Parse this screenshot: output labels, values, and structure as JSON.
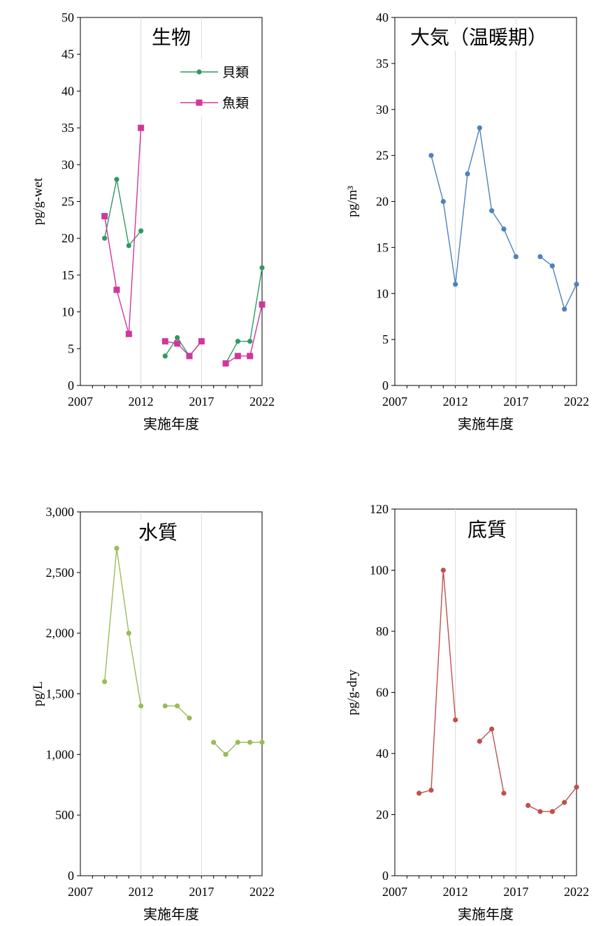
{
  "chart_data": [
    {
      "type": "line",
      "title": "生物",
      "xlabel": "実施年度",
      "ylabel": "pg/g-wet",
      "xlim": [
        2007,
        2022
      ],
      "ylim": [
        0,
        50
      ],
      "yticks": [
        0,
        5,
        10,
        15,
        20,
        25,
        30,
        35,
        40,
        45,
        50
      ],
      "ytick_labels": [
        "0",
        "5",
        "10",
        "15",
        "20",
        "25",
        "30",
        "35",
        "40",
        "45",
        "50"
      ],
      "xticks": [
        2007,
        2012,
        2017,
        2022
      ],
      "xtick_labels": [
        "2007",
        "2012",
        "2017",
        "2022"
      ],
      "legend": "top-right",
      "grid": "vertical",
      "series": [
        {
          "name": "貝類",
          "color": "#2e9a62",
          "marker": "circle",
          "segments": [
            [
              [
                2009,
                20
              ],
              [
                2010,
                28
              ],
              [
                2011,
                19
              ],
              [
                2012,
                21
              ]
            ],
            [
              [
                2014,
                4
              ],
              [
                2015,
                6.5
              ],
              [
                2016,
                4
              ],
              [
                2017,
                6
              ]
            ],
            [
              [
                2019,
                3
              ],
              [
                2020,
                6
              ],
              [
                2021,
                6
              ],
              [
                2022,
                16
              ]
            ]
          ]
        },
        {
          "name": "魚類",
          "color": "#d0379c",
          "marker": "square",
          "segments": [
            [
              [
                2009,
                23
              ],
              [
                2010,
                13
              ],
              [
                2011,
                7
              ],
              [
                2012,
                35
              ]
            ],
            [
              [
                2014,
                6
              ],
              [
                2015,
                5.7
              ],
              [
                2016,
                4
              ],
              [
                2017,
                6
              ]
            ],
            [
              [
                2019,
                3
              ],
              [
                2020,
                4
              ],
              [
                2021,
                4
              ],
              [
                2022,
                11
              ]
            ]
          ]
        }
      ]
    },
    {
      "type": "line",
      "title": "大気（温暖期）",
      "xlabel": "実施年度",
      "ylabel": "pg/m³",
      "xlim": [
        2007,
        2022
      ],
      "ylim": [
        0,
        40
      ],
      "yticks": [
        0,
        5,
        10,
        15,
        20,
        25,
        30,
        35,
        40
      ],
      "ytick_labels": [
        "0",
        "5",
        "10",
        "15",
        "20",
        "25",
        "30",
        "35",
        "40"
      ],
      "xticks": [
        2007,
        2012,
        2017,
        2022
      ],
      "xtick_labels": [
        "2007",
        "2012",
        "2017",
        "2022"
      ],
      "grid": "vertical",
      "series": [
        {
          "color": "#4f81bd",
          "marker": "circle",
          "segments": [
            [
              [
                2010,
                25
              ],
              [
                2011,
                20
              ],
              [
                2012,
                11
              ],
              [
                2013,
                23
              ],
              [
                2014,
                28
              ],
              [
                2015,
                19
              ],
              [
                2016,
                17
              ],
              [
                2017,
                14
              ]
            ],
            [
              [
                2019,
                14
              ],
              [
                2020,
                13
              ],
              [
                2021,
                8.3
              ],
              [
                2022,
                11
              ]
            ]
          ]
        }
      ]
    },
    {
      "type": "line",
      "title": "水質",
      "xlabel": "実施年度",
      "ylabel": "pg/L",
      "xlim": [
        2007,
        2022
      ],
      "ylim": [
        0,
        3000
      ],
      "yticks": [
        0,
        500,
        1000,
        1500,
        2000,
        2500,
        3000
      ],
      "ytick_labels": [
        "0",
        "500",
        "1,000",
        "1,500",
        "2,000",
        "2,500",
        "3,000"
      ],
      "xticks": [
        2007,
        2012,
        2017,
        2022
      ],
      "xtick_labels": [
        "2007",
        "2012",
        "2017",
        "2022"
      ],
      "grid": "vertical",
      "series": [
        {
          "color": "#9bbb59",
          "marker": "circle",
          "segments": [
            [
              [
                2009,
                1600
              ],
              [
                2010,
                2700
              ],
              [
                2011,
                2000
              ],
              [
                2012,
                1400
              ]
            ],
            [
              [
                2014,
                1400
              ],
              [
                2015,
                1400
              ],
              [
                2016,
                1300
              ]
            ],
            [
              [
                2018,
                1100
              ],
              [
                2019,
                1000
              ],
              [
                2020,
                1100
              ],
              [
                2021,
                1100
              ],
              [
                2022,
                1100
              ]
            ]
          ]
        }
      ]
    },
    {
      "type": "line",
      "title": "底質",
      "xlabel": "実施年度",
      "ylabel": "pg/g-dry",
      "xlim": [
        2007,
        2022
      ],
      "ylim": [
        0,
        120
      ],
      "yticks": [
        0,
        20,
        40,
        60,
        80,
        100,
        120
      ],
      "ytick_labels": [
        "0",
        "20",
        "40",
        "60",
        "80",
        "100",
        "120"
      ],
      "xticks": [
        2007,
        2012,
        2017,
        2022
      ],
      "xtick_labels": [
        "2007",
        "2012",
        "2017",
        "2022"
      ],
      "grid": "vertical",
      "series": [
        {
          "color": "#c0504d",
          "marker": "circle",
          "segments": [
            [
              [
                2009,
                27
              ],
              [
                2010,
                28
              ],
              [
                2011,
                100
              ],
              [
                2012,
                51
              ]
            ],
            [
              [
                2014,
                44
              ],
              [
                2015,
                48
              ],
              [
                2016,
                27
              ]
            ],
            [
              [
                2018,
                23
              ],
              [
                2019,
                21
              ],
              [
                2020,
                21
              ],
              [
                2021,
                24
              ],
              [
                2022,
                29
              ]
            ]
          ]
        }
      ]
    }
  ]
}
